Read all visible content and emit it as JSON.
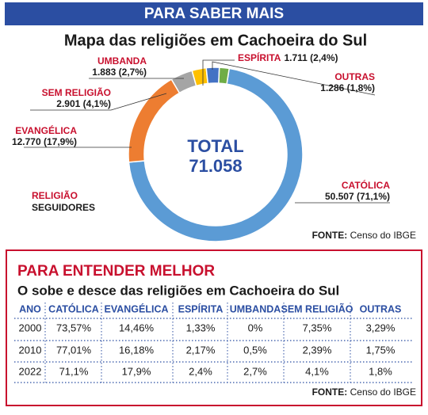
{
  "header": "PARA SABER MAIS",
  "chart_data": {
    "type": "donut",
    "title": "Mapa das religiões em Cachoeira do Sul",
    "categories": [
      "CATÓLICA",
      "EVANGÉLICA",
      "SEM RELIGIÃO",
      "UMBANDA",
      "ESPÍRITA",
      "OUTRAS"
    ],
    "values": [
      50507,
      12770,
      2901,
      1883,
      1711,
      1286
    ],
    "value_labels": [
      "50.507 (71,1%)",
      "12.770 (17,9%)",
      "2.901 (4,1%)",
      "1.883 (2,7%)",
      "1.711 (2,4%)",
      "1.286 (1,8%)"
    ],
    "colors": [
      "#5b9bd5",
      "#ed7d31",
      "#a5a5a5",
      "#ffc000",
      "#4472c4",
      "#70ad47"
    ],
    "center_title": "TOTAL",
    "center_text": "71.058",
    "legend": [
      "RELIGIÃO",
      "SEGUIDORES"
    ],
    "source": {
      "label": "FONTE:",
      "text": "Censo do IBGE"
    }
  },
  "table_section": {
    "title": "PARA ENTENDER MELHOR",
    "subtitle": "O sobe e desce das religiões em Cachoeira do Sul",
    "table": {
      "columns": [
        "ANO",
        "CATÓLICA",
        "EVANGÉLICA",
        "ESPÍRITA",
        "UMBANDA",
        "SEM RELIGIÃO",
        "OUTRAS"
      ],
      "rows": [
        [
          "2000",
          "73,57%",
          "14,46%",
          "1,33%",
          "0%",
          "7,35%",
          "3,29%"
        ],
        [
          "2010",
          "77,01%",
          "16,18%",
          "2,17%",
          "0,5%",
          "2,39%",
          "1,75%"
        ],
        [
          "2022",
          "71,1%",
          "17,9%",
          "2,4%",
          "2,7%",
          "4,1%",
          "1,8%"
        ]
      ]
    },
    "source": {
      "label": "FONTE:",
      "text": "Censo do IBGE"
    }
  }
}
